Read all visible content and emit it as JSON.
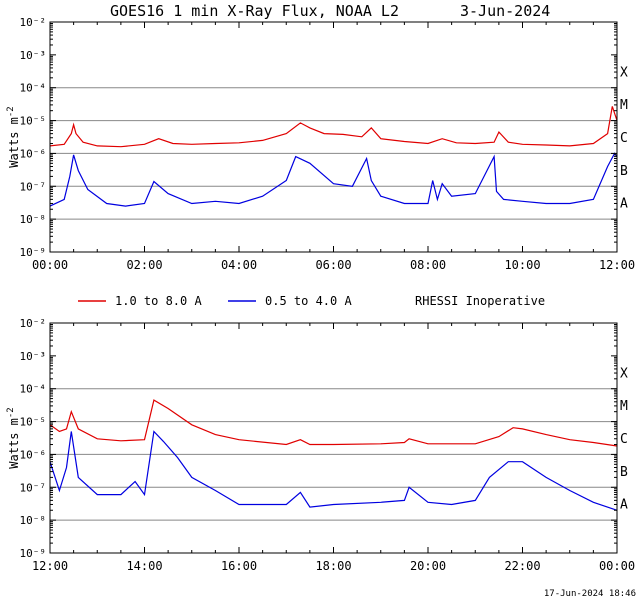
{
  "title": "GOES16 1 min X-Ray Flux, NOAA L2",
  "date": "3-Jun-2024",
  "timestamp": "17-Jun-2024 18:46",
  "legend": {
    "series_long": "1.0 to 8.0 A",
    "series_short": "0.5 to 4.0 A",
    "note": "RHESSI Inoperative"
  },
  "colors": {
    "long": "#e00000",
    "short": "#0000e0",
    "grid": "#888888"
  },
  "chart_data": [
    {
      "type": "line",
      "panel": "top",
      "ylabel": "Watts m",
      "ylabel_sup": "-2",
      "yscale": "log",
      "ylim_exp": [
        -9,
        -2
      ],
      "ytick_exponents": [
        -9,
        -8,
        -7,
        -6,
        -5,
        -4,
        -3,
        -2
      ],
      "flare_classes": [
        {
          "label": "A",
          "exp": -8
        },
        {
          "label": "B",
          "exp": -7
        },
        {
          "label": "C",
          "exp": -6
        },
        {
          "label": "M",
          "exp": -5
        },
        {
          "label": "X",
          "exp": -4
        }
      ],
      "xlim_hours": [
        0,
        12
      ],
      "xtick_labels": [
        "00:00",
        "02:00",
        "04:00",
        "06:00",
        "08:00",
        "10:00",
        "12:00"
      ],
      "grid": true,
      "series": [
        {
          "key": "long",
          "hours": [
            0,
            0.3,
            0.45,
            0.5,
            0.55,
            0.7,
            1.0,
            1.5,
            2.0,
            2.3,
            2.6,
            3.0,
            3.5,
            4.0,
            4.5,
            5.0,
            5.3,
            5.5,
            5.8,
            6.2,
            6.6,
            6.8,
            7.0,
            7.5,
            8.0,
            8.3,
            8.6,
            9.0,
            9.4,
            9.5,
            9.7,
            10.0,
            10.5,
            11.0,
            11.5,
            11.8,
            11.9,
            12.0
          ],
          "flux": [
            1.7e-06,
            1.9e-06,
            4e-06,
            7.5e-06,
            4e-06,
            2.2e-06,
            1.7e-06,
            1.6e-06,
            1.9e-06,
            2.8e-06,
            2e-06,
            1.9e-06,
            2e-06,
            2.1e-06,
            2.5e-06,
            4e-06,
            8.5e-06,
            6e-06,
            4e-06,
            3.8e-06,
            3.2e-06,
            6e-06,
            2.8e-06,
            2.3e-06,
            2e-06,
            2.8e-06,
            2.1e-06,
            2e-06,
            2.2e-06,
            4.5e-06,
            2.2e-06,
            1.9e-06,
            1.8e-06,
            1.7e-06,
            2e-06,
            4e-06,
            2.7e-05,
            1e-05
          ]
        },
        {
          "key": "short",
          "hours": [
            0,
            0.3,
            0.42,
            0.5,
            0.6,
            0.8,
            1.2,
            1.6,
            2.0,
            2.2,
            2.5,
            3.0,
            3.5,
            4.0,
            4.5,
            5.0,
            5.2,
            5.5,
            6.0,
            6.4,
            6.7,
            6.8,
            7.0,
            7.5,
            8.0,
            8.1,
            8.2,
            8.3,
            8.5,
            9.0,
            9.4,
            9.45,
            9.6,
            10.0,
            10.5,
            11.0,
            11.5,
            11.8,
            11.95,
            12.0
          ],
          "flux": [
            2.5e-08,
            4e-08,
            2e-07,
            9e-07,
            3e-07,
            8e-08,
            3e-08,
            2.5e-08,
            3e-08,
            1.4e-07,
            6e-08,
            3e-08,
            3.5e-08,
            3e-08,
            5e-08,
            1.5e-07,
            8e-07,
            5e-07,
            1.2e-07,
            1e-07,
            7e-07,
            1.5e-07,
            5e-08,
            3e-08,
            3e-08,
            1.5e-07,
            4e-08,
            1.2e-07,
            5e-08,
            6e-08,
            8e-07,
            7e-08,
            4e-08,
            3.5e-08,
            3e-08,
            3e-08,
            4e-08,
            4e-07,
            1e-06,
            8e-07
          ]
        }
      ]
    },
    {
      "type": "line",
      "panel": "bottom",
      "ylabel": "Watts m",
      "ylabel_sup": "-2",
      "yscale": "log",
      "ylim_exp": [
        -9,
        -2
      ],
      "ytick_exponents": [
        -9,
        -8,
        -7,
        -6,
        -5,
        -4,
        -3,
        -2
      ],
      "flare_classes": [
        {
          "label": "A",
          "exp": -8
        },
        {
          "label": "B",
          "exp": -7
        },
        {
          "label": "C",
          "exp": -6
        },
        {
          "label": "M",
          "exp": -5
        },
        {
          "label": "X",
          "exp": -4
        }
      ],
      "xlim_hours": [
        12,
        24
      ],
      "xtick_labels": [
        "12:00",
        "14:00",
        "16:00",
        "18:00",
        "20:00",
        "22:00",
        "00:00"
      ],
      "grid": true,
      "series": [
        {
          "key": "long",
          "hours": [
            12,
            12.2,
            12.35,
            12.45,
            12.6,
            13.0,
            13.5,
            14.0,
            14.2,
            14.5,
            15.0,
            15.5,
            16.0,
            17.0,
            17.3,
            17.5,
            18.0,
            19.0,
            19.5,
            19.6,
            20.0,
            21.0,
            21.5,
            21.8,
            22.0,
            22.5,
            23.0,
            23.5,
            24.0
          ],
          "flux": [
            8e-06,
            5e-06,
            6e-06,
            2e-05,
            6e-06,
            3e-06,
            2.6e-06,
            2.8e-06,
            4.5e-05,
            2.5e-05,
            8e-06,
            4e-06,
            2.8e-06,
            2e-06,
            2.8e-06,
            2e-06,
            2e-06,
            2.1e-06,
            2.3e-06,
            3e-06,
            2.1e-06,
            2.1e-06,
            3.5e-06,
            6.5e-06,
            6e-06,
            4e-06,
            2.8e-06,
            2.3e-06,
            1.8e-06
          ]
        },
        {
          "key": "short",
          "hours": [
            12,
            12.2,
            12.35,
            12.45,
            12.6,
            13.0,
            13.5,
            13.8,
            14.0,
            14.2,
            14.4,
            14.7,
            15.0,
            15.5,
            16.0,
            17.0,
            17.3,
            17.5,
            18.0,
            19.0,
            19.5,
            19.6,
            20.0,
            20.5,
            21.0,
            21.3,
            21.7,
            22.0,
            22.5,
            23.0,
            23.5,
            24.0
          ],
          "flux": [
            6e-07,
            8e-08,
            4e-07,
            5e-06,
            2e-07,
            6e-08,
            6e-08,
            1.5e-07,
            6e-08,
            5e-06,
            2.5e-06,
            8e-07,
            2e-07,
            8e-08,
            3e-08,
            3e-08,
            7e-08,
            2.5e-08,
            3e-08,
            3.5e-08,
            4e-08,
            1e-07,
            3.5e-08,
            3e-08,
            4e-08,
            2e-07,
            6e-07,
            6e-07,
            2e-07,
            8e-08,
            3.5e-08,
            2e-08
          ]
        }
      ]
    }
  ]
}
